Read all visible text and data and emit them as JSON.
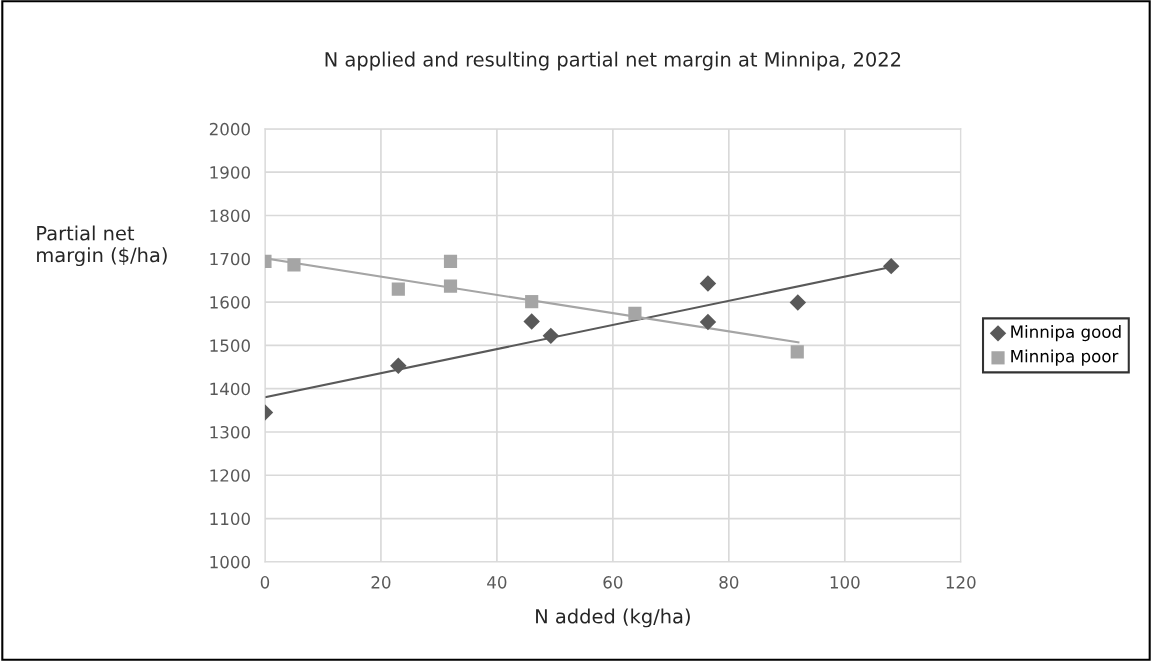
{
  "chart_data": {
    "type": "scatter",
    "title": "N applied and resulting partial net margin at Minnipa, 2022",
    "xlabel": "N added (kg/ha)",
    "ylabel": "Partial net\nmargin ($/ha)",
    "xlim": [
      0,
      120
    ],
    "xticks": [
      0,
      20,
      40,
      60,
      80,
      100,
      120
    ],
    "ylim": [
      1000,
      2000
    ],
    "yticks": [
      1000,
      1100,
      1200,
      1300,
      1400,
      1500,
      1600,
      1700,
      1800,
      1900,
      2000
    ],
    "grid": true,
    "legend": "right",
    "series": [
      {
        "name": "Minnipa good",
        "color": "#595959",
        "marker": "diamond",
        "x": [
          0,
          23,
          46,
          49.3,
          76.4,
          76.4,
          91.9,
          108
        ],
        "values": [
          1345,
          1453,
          1555,
          1522,
          1643,
          1554,
          1599,
          1683
        ]
      },
      {
        "name": "Minnipa poor",
        "color": "#a5a5a5",
        "marker": "square",
        "x": [
          0,
          5,
          23,
          32,
          32,
          46,
          63.8,
          91.8
        ],
        "values": [
          1694,
          1686,
          1630,
          1694,
          1637,
          1601,
          1574,
          1485
        ]
      },
      {
        "type": "line",
        "color": "#595959",
        "x": [
          0,
          108
        ],
        "values": [
          1380,
          1681
        ]
      },
      {
        "type": "line",
        "color": "#a5a5a5",
        "x": [
          0,
          92
        ],
        "values": [
          1701,
          1507
        ]
      }
    ]
  }
}
